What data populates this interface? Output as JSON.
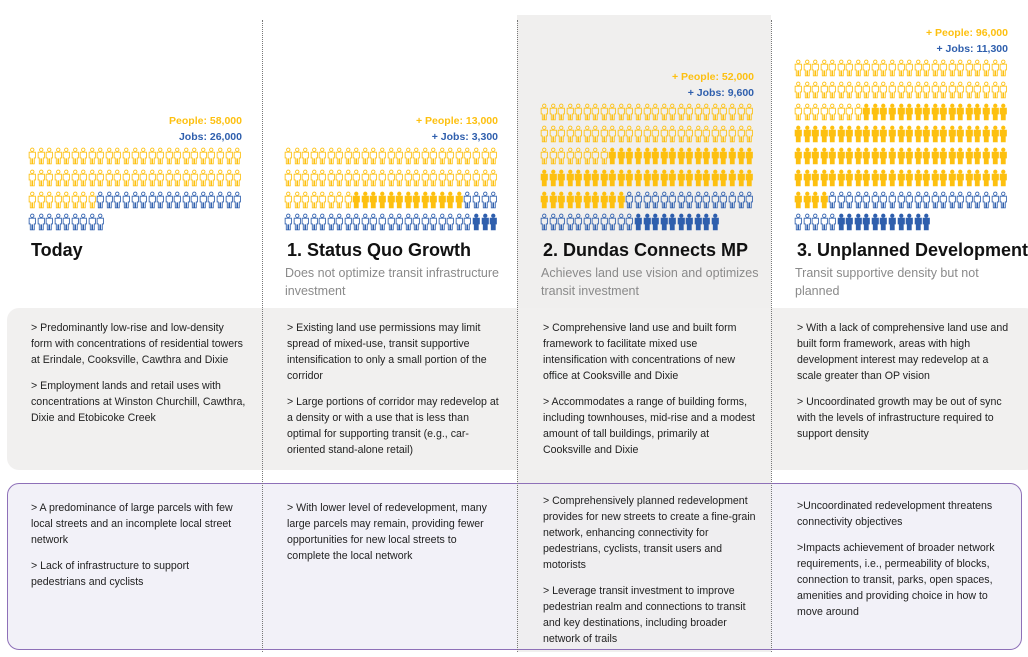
{
  "colors": {
    "people": "#fdc010",
    "jobs": "#2f5fad",
    "highlight_band": "#f0efee",
    "network_border": "#8e70b8"
  },
  "icon_unit": "1 icon = 1,000",
  "columns": [
    {
      "title": "Today",
      "subtitle": "",
      "people_label": "People: 58,000",
      "jobs_label": "Jobs: 26,000",
      "icons": {
        "people_existing": 58,
        "people_new": 0,
        "jobs_existing": 26,
        "jobs_new": 0
      },
      "land_use": [
        "> Predominantly low-rise and low-density form with concentrations of residential towers at Erindale, Cooksville, Cawthra and Dixie",
        "> Employment lands and retail uses  with concentrations at Winston Churchill, Cawthra, Dixie and Etobicoke Creek"
      ],
      "network": [
        "> A predominance of large parcels with few local streets and an incomplete local street network",
        "> Lack of infrastructure to support pedestrians and cyclists"
      ]
    },
    {
      "title": "1. Status Quo Growth",
      "subtitle": "Does not optimize transit infrastructure investment",
      "people_label": "+ People: 13,000",
      "jobs_label": "+ Jobs: 3,300",
      "icons": {
        "people_existing": 58,
        "people_new": 13,
        "jobs_existing": 26,
        "jobs_new": 3
      },
      "land_use": [
        "> Existing land use permissions may limit spread of mixed-use, transit supportive intensification to only a small portion of the corridor",
        "> Large portions of corridor may redevelop at a density or with a use that is less than optimal for supporting transit (e.g., car-oriented stand-alone retail)"
      ],
      "network": [
        "> With lower level of redevelopment, many large parcels may remain, providing fewer opportunities for new local streets to complete the local network"
      ]
    },
    {
      "title": "2. Dundas Connects MP",
      "subtitle": "Achieves land use vision and optimizes transit investment",
      "people_label": "+ People: 52,000",
      "jobs_label": "+ Jobs: 9,600",
      "icons": {
        "people_existing": 58,
        "people_new": 52,
        "jobs_existing": 26,
        "jobs_new": 10
      },
      "land_use": [
        "> Comprehensive land use and built form framework to facilitate mixed use intensification with concentrations of new office at Cooksville and Dixie",
        "> Accommodates a range of building forms, including townhouses, mid-rise and a modest amount of tall buildings, primarily at Cooksville and Dixie"
      ],
      "network": [
        "> Comprehensively planned redevelopment provides for new streets to create a fine-grain network, enhancing connectivity for pedestrians, cyclists, transit users and motorists",
        "> Leverage transit investment to improve pedestrian realm and connections to transit and key destinations, including broader network of trails"
      ]
    },
    {
      "title": "3. Unplanned Development",
      "subtitle": "Transit supportive density but not planned",
      "people_label": "+ People: 96,000",
      "jobs_label": "+ Jobs: 11,300",
      "icons": {
        "people_existing": 58,
        "people_new": 96,
        "jobs_existing": 26,
        "jobs_new": 11
      },
      "land_use": [
        "> With a lack of comprehensive land use and built form framework, areas with high development interest may redevelop at a scale greater than OP vision",
        "> Uncoordinated growth may be out of sync with the levels of infrastructure required to support density"
      ],
      "network": [
        ">Uncoordinated redevelopment threatens connectivity objectives",
        ">Impacts achievement of broader network requirements, i.e., permeability of blocks, connection to transit, parks, open spaces, amenities and providing choice in how to move around"
      ]
    }
  ]
}
